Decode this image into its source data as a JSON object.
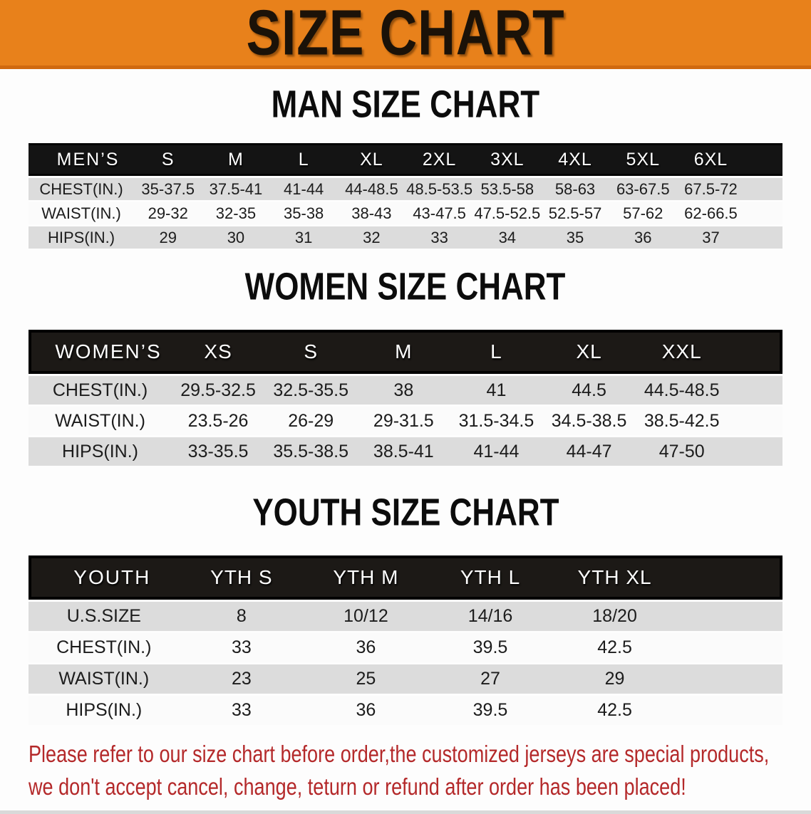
{
  "banner": {
    "title": "SIZE CHART"
  },
  "colors": {
    "banner_bg": "#E8811B",
    "table_header_bg": "#151515",
    "row_stripe_gray": "#DCDCDC",
    "row_stripe_white": "#FBFBFB",
    "disclaimer_red": "#B4292A"
  },
  "sections": [
    {
      "heading": "MAN SIZE CHART",
      "corner_label": "MEN’S",
      "columns": [
        "S",
        "M",
        "L",
        "XL",
        "2XL",
        "3XL",
        "4XL",
        "5XL",
        "6XL"
      ],
      "rows": [
        {
          "label": "CHEST(IN.)",
          "values": [
            "35-37.5",
            "37.5-41",
            "41-44",
            "44-48.5",
            "48.5-53.5",
            "53.5-58",
            "58-63",
            "63-67.5",
            "67.5-72"
          ]
        },
        {
          "label": "WAIST(IN.)",
          "values": [
            "29-32",
            "32-35",
            "35-38",
            "38-43",
            "43-47.5",
            "47.5-52.5",
            "52.5-57",
            "57-62",
            "62-66.5"
          ]
        },
        {
          "label": "HIPS(IN.)",
          "values": [
            "29",
            "30",
            "31",
            "32",
            "33",
            "34",
            "35",
            "36",
            "37"
          ]
        }
      ]
    },
    {
      "heading": "WOMEN SIZE CHART",
      "corner_label": "WOMEN’S",
      "columns": [
        "XS",
        "S",
        "M",
        "L",
        "XL",
        "XXL"
      ],
      "rows": [
        {
          "label": "CHEST(IN.)",
          "values": [
            "29.5-32.5",
            "32.5-35.5",
            "38",
            "41",
            "44.5",
            "44.5-48.5"
          ]
        },
        {
          "label": "WAIST(IN.)",
          "values": [
            "23.5-26",
            "26-29",
            "29-31.5",
            "31.5-34.5",
            "34.5-38.5",
            "38.5-42.5"
          ]
        },
        {
          "label": "HIPS(IN.)",
          "values": [
            "33-35.5",
            "35.5-38.5",
            "38.5-41",
            "41-44",
            "44-47",
            "47-50"
          ]
        }
      ]
    },
    {
      "heading": "YOUTH SIZE CHART",
      "corner_label": "YOUTH",
      "columns": [
        "YTH S",
        "YTH M",
        "YTH L",
        "YTH XL"
      ],
      "rows": [
        {
          "label": "U.S.SIZE",
          "values": [
            "8",
            "10/12",
            "14/16",
            "18/20"
          ]
        },
        {
          "label": "CHEST(IN.)",
          "values": [
            "33",
            "36",
            "39.5",
            "42.5"
          ]
        },
        {
          "label": "WAIST(IN.)",
          "values": [
            "23",
            "25",
            "27",
            "29"
          ]
        },
        {
          "label": "HIPS(IN.)",
          "values": [
            "33",
            "36",
            "39.5",
            "42.5"
          ]
        }
      ]
    }
  ],
  "disclaimer": {
    "line1": "Please refer to our size chart before order,the customized jerseys are special products,",
    "line2": "we don't accept cancel, change, teturn or refund after order has been placed!"
  }
}
